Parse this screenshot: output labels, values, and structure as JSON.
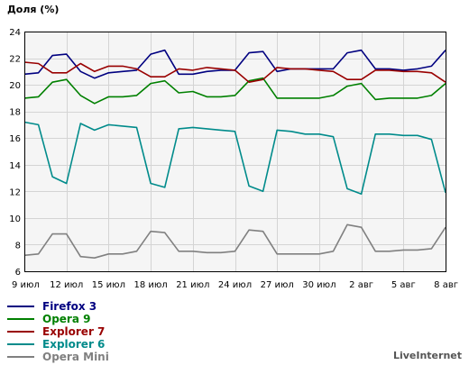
{
  "chart_data": {
    "type": "line",
    "title": "",
    "ylabel": "Доля (%)",
    "xlabel": "",
    "ylim": [
      6,
      24
    ],
    "yticks": [
      6,
      8,
      10,
      12,
      14,
      16,
      18,
      20,
      22,
      24
    ],
    "x_tick_labels": [
      "9 июл",
      "12 июл",
      "15 июл",
      "18 июл",
      "21 июл",
      "24 июл",
      "27 июл",
      "30 июл",
      "2 авг",
      "5 авг",
      "8 авг"
    ],
    "grid": true,
    "legend_position": "bottom-left",
    "background": "#f5f5f5",
    "categories": [
      "9 июл",
      "10 июл",
      "11 июл",
      "12 июл",
      "13 июл",
      "14 июл",
      "15 июл",
      "16 июл",
      "17 июл",
      "18 июл",
      "19 июл",
      "20 июл",
      "21 июл",
      "22 июл",
      "23 июл",
      "24 июл",
      "25 июл",
      "26 июл",
      "27 июл",
      "28 июл",
      "29 июл",
      "30 июл",
      "31 июл",
      "1 авг",
      "2 авг",
      "3 авг",
      "4 авг",
      "5 авг",
      "6 авг",
      "7 авг",
      "8 авг"
    ],
    "series": [
      {
        "name": "Firefox 3",
        "color": "#000080",
        "values": [
          20.8,
          20.9,
          22.2,
          22.3,
          21.0,
          20.5,
          20.9,
          21.0,
          21.1,
          22.3,
          22.6,
          20.8,
          20.8,
          21.0,
          21.1,
          21.1,
          22.4,
          22.5,
          21.0,
          21.2,
          21.2,
          21.2,
          21.2,
          22.4,
          22.6,
          21.2,
          21.2,
          21.1,
          21.2,
          21.4,
          22.6
        ]
      },
      {
        "name": "Opera 9",
        "color": "#008000",
        "values": [
          19.0,
          19.1,
          20.2,
          20.4,
          19.2,
          18.6,
          19.1,
          19.1,
          19.2,
          20.1,
          20.3,
          19.4,
          19.5,
          19.1,
          19.1,
          19.2,
          20.3,
          20.5,
          19.0,
          19.0,
          19.0,
          19.0,
          19.2,
          19.9,
          20.1,
          18.9,
          19.0,
          19.0,
          19.0,
          19.2,
          20.1
        ]
      },
      {
        "name": "Explorer 7",
        "color": "#990000",
        "values": [
          21.7,
          21.6,
          20.9,
          20.9,
          21.6,
          21.0,
          21.4,
          21.4,
          21.2,
          20.6,
          20.6,
          21.2,
          21.1,
          21.3,
          21.2,
          21.1,
          20.2,
          20.4,
          21.3,
          21.2,
          21.2,
          21.1,
          21.0,
          20.4,
          20.4,
          21.1,
          21.1,
          21.0,
          21.0,
          20.9,
          20.2
        ]
      },
      {
        "name": "Explorer 6",
        "color": "#008b8b",
        "values": [
          17.2,
          17.0,
          13.1,
          12.6,
          17.1,
          16.6,
          17.0,
          16.9,
          16.8,
          12.6,
          12.3,
          16.7,
          16.8,
          16.7,
          16.6,
          16.5,
          12.4,
          12.0,
          16.6,
          16.5,
          16.3,
          16.3,
          16.1,
          12.2,
          11.8,
          16.3,
          16.3,
          16.2,
          16.2,
          15.9,
          11.9
        ]
      },
      {
        "name": "Opera Mini",
        "color": "#808080",
        "values": [
          7.2,
          7.3,
          8.8,
          8.8,
          7.1,
          7.0,
          7.3,
          7.3,
          7.5,
          9.0,
          8.9,
          7.5,
          7.5,
          7.4,
          7.4,
          7.5,
          9.1,
          9.0,
          7.3,
          7.3,
          7.3,
          7.3,
          7.5,
          9.5,
          9.3,
          7.5,
          7.5,
          7.6,
          7.6,
          7.7,
          9.3
        ]
      }
    ]
  },
  "brand": "LiveInternet"
}
